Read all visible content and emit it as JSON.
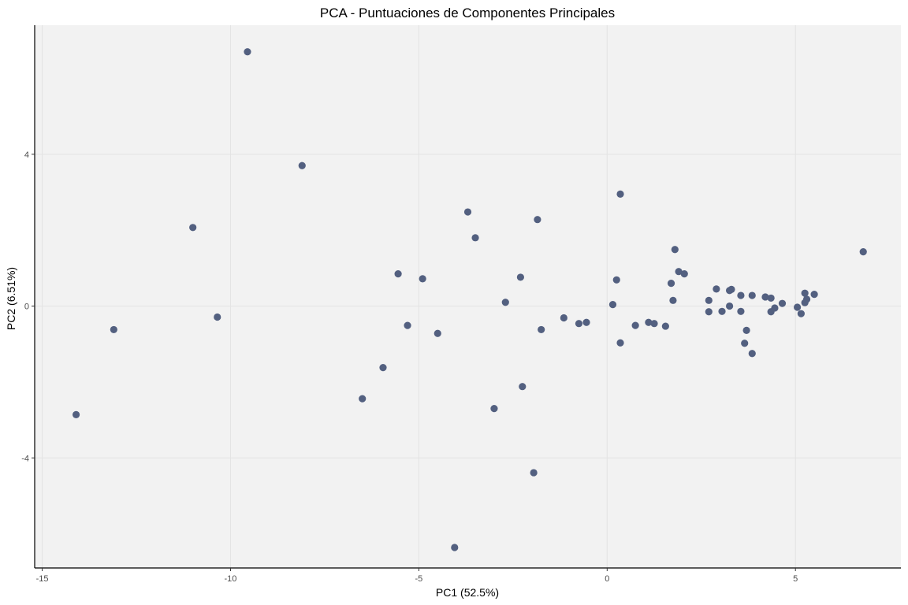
{
  "chart_data": {
    "type": "scatter",
    "title": "PCA - Puntuaciones de Componentes Principales",
    "xlabel": "PC1 (52.5%)",
    "ylabel": "PC2 (6.51%)",
    "xlim": [
      -15.2,
      7.8
    ],
    "ylim": [
      -6.9,
      7.4
    ],
    "x_ticks": [
      -15,
      -10,
      -5,
      0,
      5
    ],
    "x_tick_labels": [
      "-15",
      "-10",
      "-5",
      "0",
      "5"
    ],
    "y_ticks": [
      -4,
      0,
      4
    ],
    "y_tick_labels": [
      "-4",
      "0",
      "4"
    ],
    "grid": true,
    "point_color": "#536080",
    "panel_color": "#f2f2f2",
    "grid_color": "#e3e3e3",
    "points": [
      {
        "x": -9.55,
        "y": 6.7
      },
      {
        "x": -8.1,
        "y": 3.7
      },
      {
        "x": -11.0,
        "y": 2.07
      },
      {
        "x": -13.1,
        "y": -0.62
      },
      {
        "x": -14.1,
        "y": -2.86
      },
      {
        "x": -10.35,
        "y": -0.29
      },
      {
        "x": -6.5,
        "y": -2.44
      },
      {
        "x": -5.95,
        "y": -1.62
      },
      {
        "x": -5.55,
        "y": 0.85
      },
      {
        "x": -5.3,
        "y": -0.51
      },
      {
        "x": -4.9,
        "y": 0.72
      },
      {
        "x": -4.5,
        "y": -0.72
      },
      {
        "x": -4.05,
        "y": -6.36
      },
      {
        "x": -3.7,
        "y": 2.48
      },
      {
        "x": -3.5,
        "y": 1.8
      },
      {
        "x": -3.0,
        "y": -2.7
      },
      {
        "x": -2.7,
        "y": 0.1
      },
      {
        "x": -2.3,
        "y": 0.76
      },
      {
        "x": -2.25,
        "y": -2.12
      },
      {
        "x": -1.95,
        "y": -4.39
      },
      {
        "x": -1.85,
        "y": 2.28
      },
      {
        "x": -1.75,
        "y": -0.62
      },
      {
        "x": -1.15,
        "y": -0.31
      },
      {
        "x": -0.75,
        "y": -0.46
      },
      {
        "x": -0.55,
        "y": -0.43
      },
      {
        "x": 0.15,
        "y": 0.04
      },
      {
        "x": 0.25,
        "y": 0.69
      },
      {
        "x": 0.35,
        "y": 2.95
      },
      {
        "x": 0.35,
        "y": -0.97
      },
      {
        "x": 0.75,
        "y": -0.51
      },
      {
        "x": 1.1,
        "y": -0.43
      },
      {
        "x": 1.25,
        "y": -0.46
      },
      {
        "x": 1.55,
        "y": -0.53
      },
      {
        "x": 1.7,
        "y": 0.6
      },
      {
        "x": 1.75,
        "y": 0.15
      },
      {
        "x": 1.8,
        "y": 1.49
      },
      {
        "x": 1.9,
        "y": 0.91
      },
      {
        "x": 2.05,
        "y": 0.85
      },
      {
        "x": 2.7,
        "y": 0.15
      },
      {
        "x": 2.7,
        "y": -0.15
      },
      {
        "x": 2.9,
        "y": 0.45
      },
      {
        "x": 3.05,
        "y": -0.14
      },
      {
        "x": 3.25,
        "y": 0.41
      },
      {
        "x": 3.3,
        "y": 0.44
      },
      {
        "x": 3.25,
        "y": 0.0
      },
      {
        "x": 3.55,
        "y": 0.28
      },
      {
        "x": 3.55,
        "y": -0.14
      },
      {
        "x": 3.65,
        "y": -0.98
      },
      {
        "x": 3.7,
        "y": -0.64
      },
      {
        "x": 3.85,
        "y": -1.25
      },
      {
        "x": 3.85,
        "y": 0.28
      },
      {
        "x": 4.2,
        "y": 0.24
      },
      {
        "x": 4.35,
        "y": 0.21
      },
      {
        "x": 4.35,
        "y": -0.15
      },
      {
        "x": 4.45,
        "y": -0.05
      },
      {
        "x": 4.65,
        "y": 0.07
      },
      {
        "x": 5.05,
        "y": -0.03
      },
      {
        "x": 5.15,
        "y": -0.2
      },
      {
        "x": 5.25,
        "y": 0.09
      },
      {
        "x": 5.3,
        "y": 0.18
      },
      {
        "x": 5.25,
        "y": 0.34
      },
      {
        "x": 5.5,
        "y": 0.31
      },
      {
        "x": 6.8,
        "y": 1.43
      }
    ]
  }
}
